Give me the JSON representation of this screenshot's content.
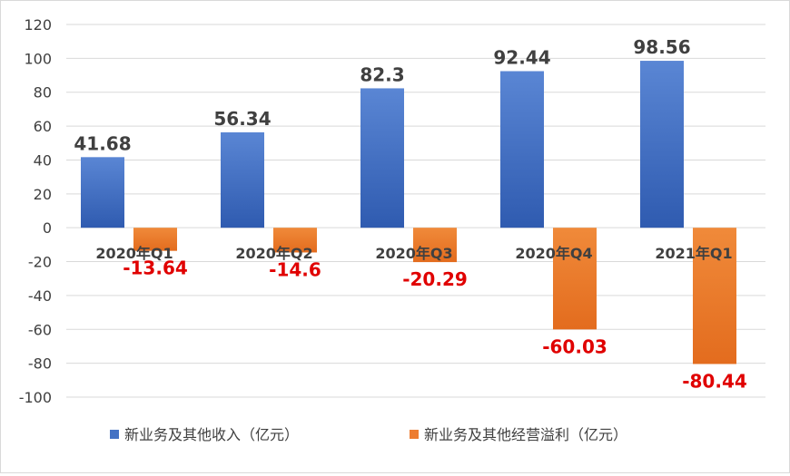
{
  "chart_data": {
    "type": "bar",
    "categories": [
      "2020年Q1",
      "2020年Q2",
      "2020年Q3",
      "2020年Q4",
      "2021年Q1"
    ],
    "series": [
      {
        "name": "新业务及其他收入（亿元）",
        "values": [
          41.68,
          56.34,
          82.3,
          92.44,
          98.56
        ],
        "labels": [
          "41.68",
          "56.34",
          "82.3",
          "92.44",
          "98.56"
        ],
        "color": "#4472C4",
        "label_color": "#404040"
      },
      {
        "name": "新业务及其他经营溢利（亿元）",
        "values": [
          -13.64,
          -14.6,
          -20.29,
          -60.03,
          -80.44
        ],
        "labels": [
          "-13.64",
          "-14.6",
          "-20.29",
          "-60.03",
          "-80.44"
        ],
        "color": "#ED7D31",
        "label_color": "#E00000"
      }
    ],
    "ylim": [
      -100,
      120
    ],
    "yticks": [
      -100,
      -80,
      -60,
      -40,
      -20,
      0,
      20,
      40,
      60,
      80,
      100,
      120
    ],
    "grid": true,
    "legend_position": "bottom",
    "title": "",
    "xlabel": "",
    "ylabel": ""
  }
}
